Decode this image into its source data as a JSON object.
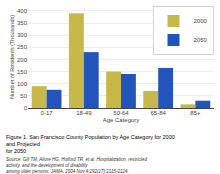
{
  "chart_data": {
    "type": "bar",
    "title": "Figure 1. San Francisco County Population by Age Category for 2000 and Projected\nfor 2050",
    "annotations": [
      "Source: Gill TM, Allore HG, Holford TR, et al. Hospitalization, restricted activity, and the development of disability\namong older persons. JAMA. 2004 Nov 4;292(17):2115-2124."
    ],
    "xlabel": "Age Category",
    "ylabel": "Number of Residents (Thousands)",
    "categories": [
      "0-17",
      "18-49",
      "50-64",
      "65-84",
      "85+"
    ],
    "series": [
      {
        "name": "2000",
        "color": "#c8b84a",
        "values": [
          90,
          390,
          150,
          70,
          15
        ]
      },
      {
        "name": "2050",
        "color": "#2255bb",
        "values": [
          75,
          230,
          140,
          165,
          30
        ]
      }
    ],
    "ylim": [
      0,
      420
    ],
    "yticks": [
      0,
      50,
      100,
      150,
      200,
      250,
      300,
      350,
      400
    ],
    "grid": true,
    "legend": "upper right"
  }
}
